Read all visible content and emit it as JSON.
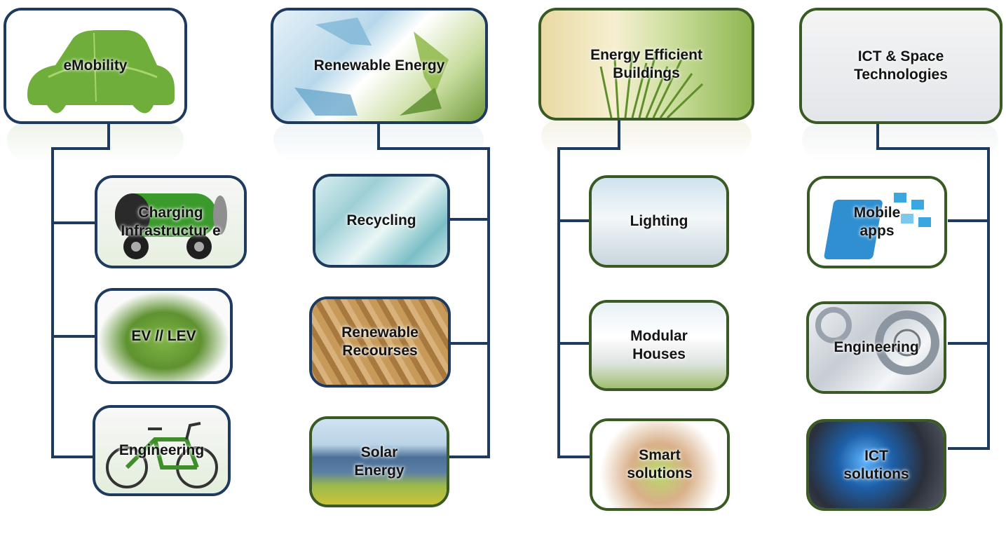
{
  "columns": [
    {
      "title": "eMobility",
      "items": [
        "Charging Infrastructur e",
        "EV // LEV",
        "Engineering"
      ]
    },
    {
      "title": "Renewable Energy",
      "items": [
        "Recycling",
        "Renewable Recourses",
        "Solar Energy"
      ]
    },
    {
      "title": "Energy Efficient Buildings",
      "items": [
        "Lighting",
        "Modular Houses",
        "Smart solutions"
      ]
    },
    {
      "title": "ICT & Space Technologies",
      "items": [
        "Mobile apps",
        "Engineering",
        "ICT solutions"
      ]
    }
  ],
  "colors": {
    "blue_border": "#1f3a5f",
    "green_border": "#3a5a23",
    "connector": "#1f3a5f"
  },
  "icons": [
    "leaf-car-icon",
    "recycle-icon",
    "grass-building-icon",
    "satellite-icon",
    "battery-car-icon",
    "grass-car-icon",
    "ebike-icon",
    "shards-icon",
    "pellets-icon",
    "solar-panel-icon",
    "hall-icon",
    "house-icon",
    "hands-globe-icon",
    "tablet-icon",
    "bearing-icon",
    "globe-icon"
  ]
}
